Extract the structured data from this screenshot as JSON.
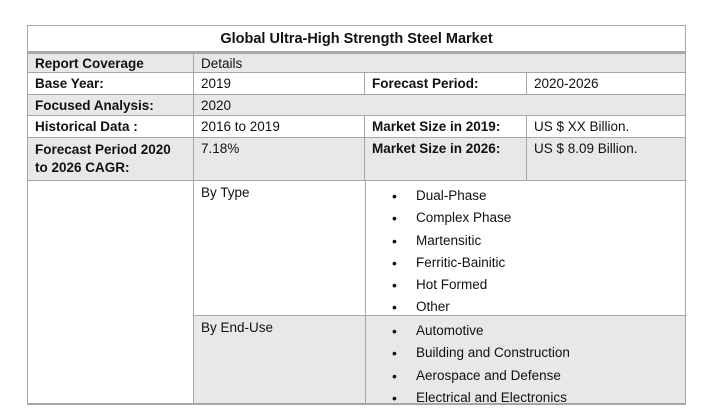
{
  "table": {
    "title": "Global Ultra-High Strength Steel Market",
    "report_coverage": {
      "label": "Report Coverage",
      "value": "Details"
    },
    "base_year": {
      "label": "Base Year:",
      "value": "2019"
    },
    "forecast_period": {
      "label": "Forecast Period:",
      "value": "2020-2026"
    },
    "focused_analysis": {
      "label": "Focused Analysis:",
      "value": "2020"
    },
    "historical_data": {
      "label": "Historical Data :",
      "value": "2016 to 2019"
    },
    "market_size_2019": {
      "label": "Market Size in 2019:",
      "value": "US $ XX Billion."
    },
    "cagr": {
      "label": "Forecast Period 2020 to 2026 CAGR:",
      "value": "7.18%"
    },
    "market_size_2026": {
      "label": "Market Size in 2026:",
      "value": "US $ 8.09 Billion."
    },
    "segments": [
      {
        "label": "By Type",
        "items": [
          "Dual-Phase",
          "Complex Phase",
          "Martensitic",
          "Ferritic-Bainitic",
          "Hot Formed",
          "Other"
        ]
      },
      {
        "label": "By End-Use",
        "items": [
          "Automotive",
          "Building and Construction",
          "Aerospace and Defense",
          "Electrical and Electronics"
        ]
      }
    ],
    "bullet_glyph": "•"
  },
  "colors": {
    "row_shade": "#e8e8e8",
    "border": "#a6a6a6",
    "text": "#111111",
    "background": "#ffffff"
  }
}
